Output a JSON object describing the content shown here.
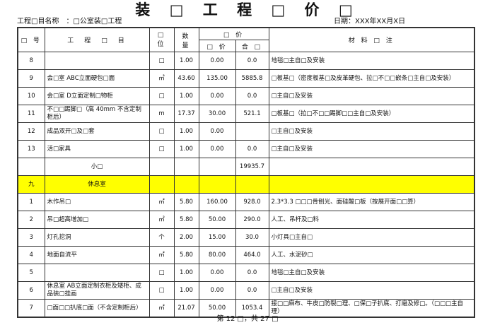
{
  "title": "装 □ 工 程 □ 价 □",
  "project_label": "工程□目名称　：□公室装□工程",
  "date_label": "日期：XXX年XX月X日",
  "headers": {
    "seq": "□ 号",
    "item": "工　程　□　目",
    "unit": "□ 位",
    "qty": "数 量",
    "price_group": "□ 价",
    "unit_price": "□ 价",
    "total": "合 □",
    "notes": "材 料 □ 注"
  },
  "rows": [
    {
      "seq": "8",
      "item": "",
      "unit": "□",
      "qty": "1.00",
      "price": "0.00",
      "total": "0.0",
      "notes": "地毯□主自□及安装"
    },
    {
      "seq": "9",
      "item": "会□室 ABC立面硬包□面",
      "unit": "㎡",
      "qty": "43.60",
      "price": "135.00",
      "total": "5885.8",
      "notes": "□板基□（密度板基□及皮革硬包、拉□不□□嵌条□主自□及安装）"
    },
    {
      "seq": "10",
      "item": "会□室 D立面定制□物柜",
      "unit": "□",
      "qty": "1.00",
      "price": "0.00",
      "total": "0.0",
      "notes": "□主自□及安装"
    },
    {
      "seq": "11",
      "item": "不□□踢脚□（高 40mm 不含定制柜后）",
      "unit": "m",
      "qty": "17.37",
      "price": "30.00",
      "total": "521.1",
      "notes": "□板基□（拉□不□□踢脚□□主自□及安装）"
    },
    {
      "seq": "12",
      "item": "成品双开□及□套",
      "unit": "□",
      "qty": "1.00",
      "price": "0.00",
      "total": "",
      "notes": "□主自□及安装"
    },
    {
      "seq": "13",
      "item": "活□家具",
      "unit": "□",
      "qty": "1.00",
      "price": "0.00",
      "total": "0.0",
      "notes": "□主自□及安装"
    },
    {
      "seq": "",
      "item": "小□",
      "unit": "",
      "qty": "",
      "price": "",
      "total": "19935.7",
      "notes": "",
      "subtotal": true
    },
    {
      "seq": "九",
      "item": "休息室",
      "unit": "",
      "qty": "",
      "price": "",
      "total": "",
      "notes": "",
      "section": true
    },
    {
      "seq": "1",
      "item": "木作吊□",
      "unit": "㎡",
      "qty": "5.80",
      "price": "160.00",
      "total": "928.0",
      "notes": "2.3*3.3 □□□骨刨光、面硅酸□板（按展开面□□算）"
    },
    {
      "seq": "2",
      "item": "吊□超高增加□",
      "unit": "㎡",
      "qty": "5.80",
      "price": "50.00",
      "total": "290.0",
      "notes": "人工、吊杆及□料"
    },
    {
      "seq": "3",
      "item": "灯孔挖洞",
      "unit": "个",
      "qty": "2.00",
      "price": "15.00",
      "total": "30.0",
      "notes": "小灯具□主自□"
    },
    {
      "seq": "4",
      "item": "地面自流平",
      "unit": "㎡",
      "qty": "5.80",
      "price": "80.00",
      "total": "464.0",
      "notes": "人工、水泥砂□"
    },
    {
      "seq": "5",
      "item": "",
      "unit": "□",
      "qty": "1.00",
      "price": "0.00",
      "total": "0.0",
      "notes": "地毯□主自□及安装"
    },
    {
      "seq": "6",
      "item": "休息室 AB立面定制衣柜及矮柜、成品装□挂画",
      "unit": "□",
      "qty": "1.00",
      "price": "0.00",
      "total": "0.0",
      "notes": "□主自□及安装"
    },
    {
      "seq": "7",
      "item": "□面□□扒底□面（不含定制柜后）",
      "unit": "㎡",
      "qty": "21.07",
      "price": "50.00",
      "total": "1053.4",
      "notes": "接□□麻布、牛皮□防裂□理、□保□子扒底、打磨及修□。（□□□主自理）"
    }
  ],
  "footer": "第 12 □，共 27 □",
  "colors": {
    "section_highlight": "#ffff00"
  }
}
